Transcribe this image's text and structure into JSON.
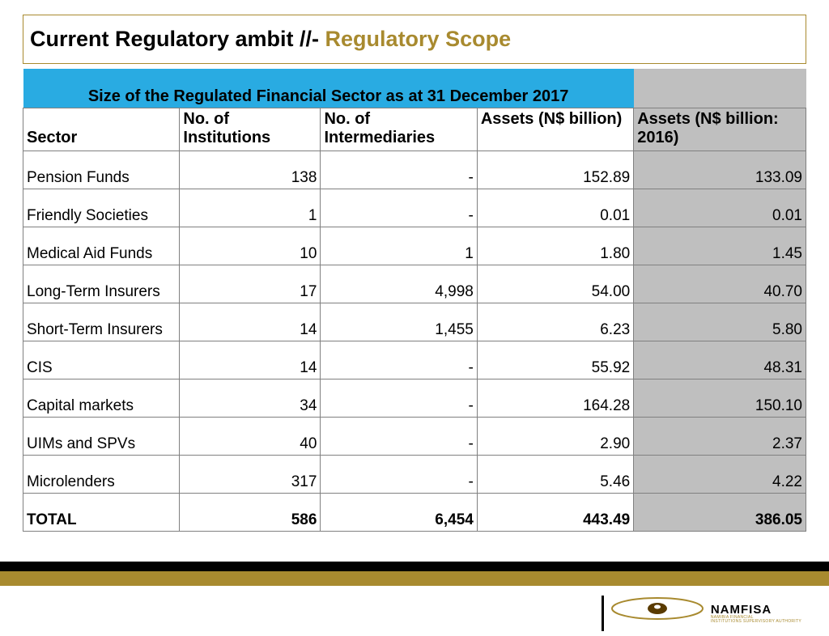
{
  "title": {
    "part1": "Current Regulatory ambit //- ",
    "part2": "Regulatory Scope"
  },
  "colors": {
    "accent_gold": "#a88a2f",
    "banner_blue": "#29abe2",
    "grey_fill": "#bfbfbf",
    "border": "#808080",
    "black": "#000000",
    "white": "#ffffff"
  },
  "table": {
    "banner": "Size of the Regulated Financial Sector as at 31 December 2017",
    "columns": [
      "Sector",
      "No. of Institutions",
      "No. of Intermediaries",
      "Assets (N$ billion)",
      "Assets (N$ billion: 2016)"
    ],
    "col_widths_pct": [
      20,
      18,
      20,
      20,
      22
    ],
    "rows": [
      {
        "sector": "Pension Funds",
        "inst": "138",
        "inter": "-",
        "assets": "152.89",
        "assets2016": "133.09"
      },
      {
        "sector": "Friendly Societies",
        "inst": "1",
        "inter": "-",
        "assets": "0.01",
        "assets2016": "0.01"
      },
      {
        "sector": "Medical Aid Funds",
        "inst": "10",
        "inter": "1",
        "assets": "1.80",
        "assets2016": "1.45"
      },
      {
        "sector": "Long-Term Insurers",
        "inst": "17",
        "inter": "4,998",
        "assets": "54.00",
        "assets2016": "40.70"
      },
      {
        "sector": "Short-Term Insurers",
        "inst": "14",
        "inter": "1,455",
        "assets": "6.23",
        "assets2016": "5.80"
      },
      {
        "sector": "CIS",
        "inst": "14",
        "inter": "-",
        "assets": "55.92",
        "assets2016": "48.31"
      },
      {
        "sector": "Capital markets",
        "inst": "34",
        "inter": "-",
        "assets": "164.28",
        "assets2016": "150.10"
      },
      {
        "sector": "UIMs and SPVs",
        "inst": "40",
        "inter": "-",
        "assets": "2.90",
        "assets2016": "2.37"
      },
      {
        "sector": "Microlenders",
        "inst": "317",
        "inter": "-",
        "assets": "5.46",
        "assets2016": "4.22"
      }
    ],
    "total": {
      "sector": "TOTAL",
      "inst": "586",
      "inter": "6,454",
      "assets": "443.49",
      "assets2016": "386.05"
    }
  },
  "logo": {
    "name": "NAMFISA",
    "sub1": "NAMIBIA FINANCIAL",
    "sub2": "INSTITUTIONS SUPERVISORY AUTHORITY"
  }
}
